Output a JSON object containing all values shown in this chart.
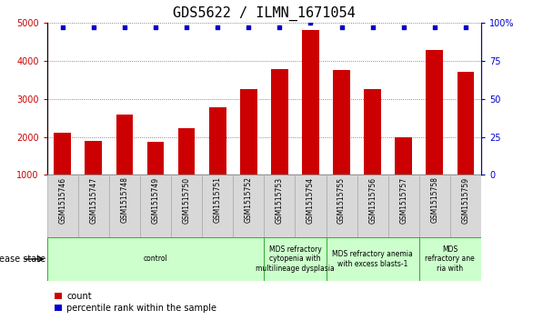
{
  "title": "GDS5622 / ILMN_1671054",
  "samples": [
    "GSM1515746",
    "GSM1515747",
    "GSM1515748",
    "GSM1515749",
    "GSM1515750",
    "GSM1515751",
    "GSM1515752",
    "GSM1515753",
    "GSM1515754",
    "GSM1515755",
    "GSM1515756",
    "GSM1515757",
    "GSM1515758",
    "GSM1515759"
  ],
  "counts": [
    2100,
    1900,
    2600,
    1870,
    2230,
    2780,
    3250,
    3780,
    4820,
    3770,
    3260,
    2000,
    4300,
    3720
  ],
  "percentile_ranks_pct": [
    97,
    97,
    97,
    97,
    97,
    97,
    97,
    97,
    100,
    97,
    97,
    97,
    97,
    97
  ],
  "bar_color": "#cc0000",
  "dot_color": "#0000cc",
  "ylim_left": [
    1000,
    5000
  ],
  "yticks_left": [
    1000,
    2000,
    3000,
    4000,
    5000
  ],
  "ylim_right": [
    0,
    100
  ],
  "yticks_right": [
    0,
    25,
    50,
    75,
    100
  ],
  "yticklabels_right": [
    "0",
    "25",
    "50",
    "75",
    "100%"
  ],
  "group_starts": [
    0,
    7,
    9,
    12
  ],
  "group_ends": [
    7,
    9,
    12,
    14
  ],
  "group_labels": [
    "control",
    "MDS refractory\ncytopenia with\nmultilineage dysplasia",
    "MDS refractory anemia\nwith excess blasts-1",
    "MDS\nrefractory ane\nria with"
  ],
  "group_color": "#ccffcc",
  "group_border_color": "#33aa33",
  "sample_bg_color": "#d8d8d8",
  "sample_border_color": "#aaaaaa",
  "disease_state_label": "disease state",
  "legend_count_label": "count",
  "legend_percentile_label": "percentile rank within the sample",
  "title_fontsize": 11,
  "tick_fontsize": 7,
  "sample_fontsize": 5.5,
  "group_fontsize": 5.5,
  "legend_fontsize": 7,
  "left_tick_color": "#cc0000",
  "right_tick_color": "#0000cc"
}
